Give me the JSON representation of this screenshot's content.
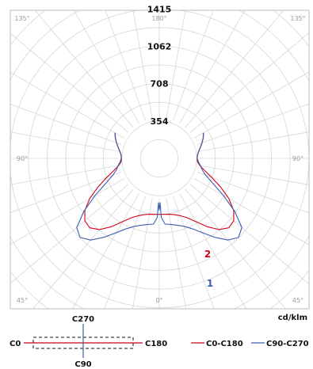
{
  "chart_data": {
    "type": "polar-line",
    "unit": "cd/klm",
    "radial_ticks": [
      354,
      708,
      1062,
      1415
    ],
    "r_max": 1770,
    "angle_ticks": [
      {
        "label": "135°",
        "angle": 135,
        "side": "left"
      },
      {
        "label": "180°",
        "angle": 180,
        "side": "center"
      },
      {
        "label": "135°",
        "angle": 135,
        "side": "right"
      },
      {
        "label": "90°",
        "angle": 90,
        "side": "left"
      },
      {
        "label": "90°",
        "angle": 90,
        "side": "right"
      },
      {
        "label": "45°",
        "angle": 45,
        "side": "left"
      },
      {
        "label": "0°",
        "angle": 0,
        "side": "center"
      },
      {
        "label": "45°",
        "angle": 45,
        "side": "right"
      }
    ],
    "series": [
      {
        "name": "C0-C180",
        "label": "2",
        "color": "#d0021b",
        "points": [
          [
            0,
            530
          ],
          [
            5,
            532
          ],
          [
            10,
            538
          ],
          [
            15,
            552
          ],
          [
            20,
            578
          ],
          [
            25,
            620
          ],
          [
            30,
            690
          ],
          [
            35,
            790
          ],
          [
            40,
            880
          ],
          [
            45,
            930
          ],
          [
            50,
            920
          ],
          [
            55,
            860
          ],
          [
            60,
            760
          ],
          [
            65,
            640
          ],
          [
            70,
            530
          ],
          [
            75,
            445
          ],
          [
            80,
            390
          ],
          [
            85,
            362
          ],
          [
            90,
            358
          ],
          [
            95,
            362
          ],
          [
            100,
            378
          ],
          [
            105,
            402
          ],
          [
            110,
            430
          ],
          [
            115,
            458
          ],
          [
            120,
            482
          ]
        ]
      },
      {
        "name": "C90-C270",
        "label": "1",
        "color": "#3a5fb0",
        "points": [
          [
            0,
            490
          ],
          [
            1,
            420
          ],
          [
            2,
            560
          ],
          [
            5,
            625
          ],
          [
            10,
            635
          ],
          [
            15,
            655
          ],
          [
            20,
            685
          ],
          [
            25,
            735
          ],
          [
            30,
            812
          ],
          [
            35,
            912
          ],
          [
            40,
            1010
          ],
          [
            45,
            1060
          ],
          [
            50,
            1020
          ],
          [
            55,
            870
          ],
          [
            60,
            700
          ],
          [
            65,
            560
          ],
          [
            70,
            468
          ],
          [
            75,
            420
          ],
          [
            80,
            395
          ],
          [
            85,
            372
          ],
          [
            90,
            360
          ],
          [
            95,
            364
          ],
          [
            100,
            380
          ],
          [
            105,
            404
          ],
          [
            110,
            432
          ],
          [
            115,
            460
          ],
          [
            120,
            484
          ]
        ]
      }
    ]
  },
  "symbol": {
    "top_label": "C270",
    "bottom_label": "C90",
    "left_label": "C0",
    "right_label": "C180"
  },
  "legend": [
    {
      "name": "C0-C180",
      "color": "#d0021b"
    },
    {
      "name": "C90-C270",
      "color": "#3a5fb0"
    }
  ]
}
